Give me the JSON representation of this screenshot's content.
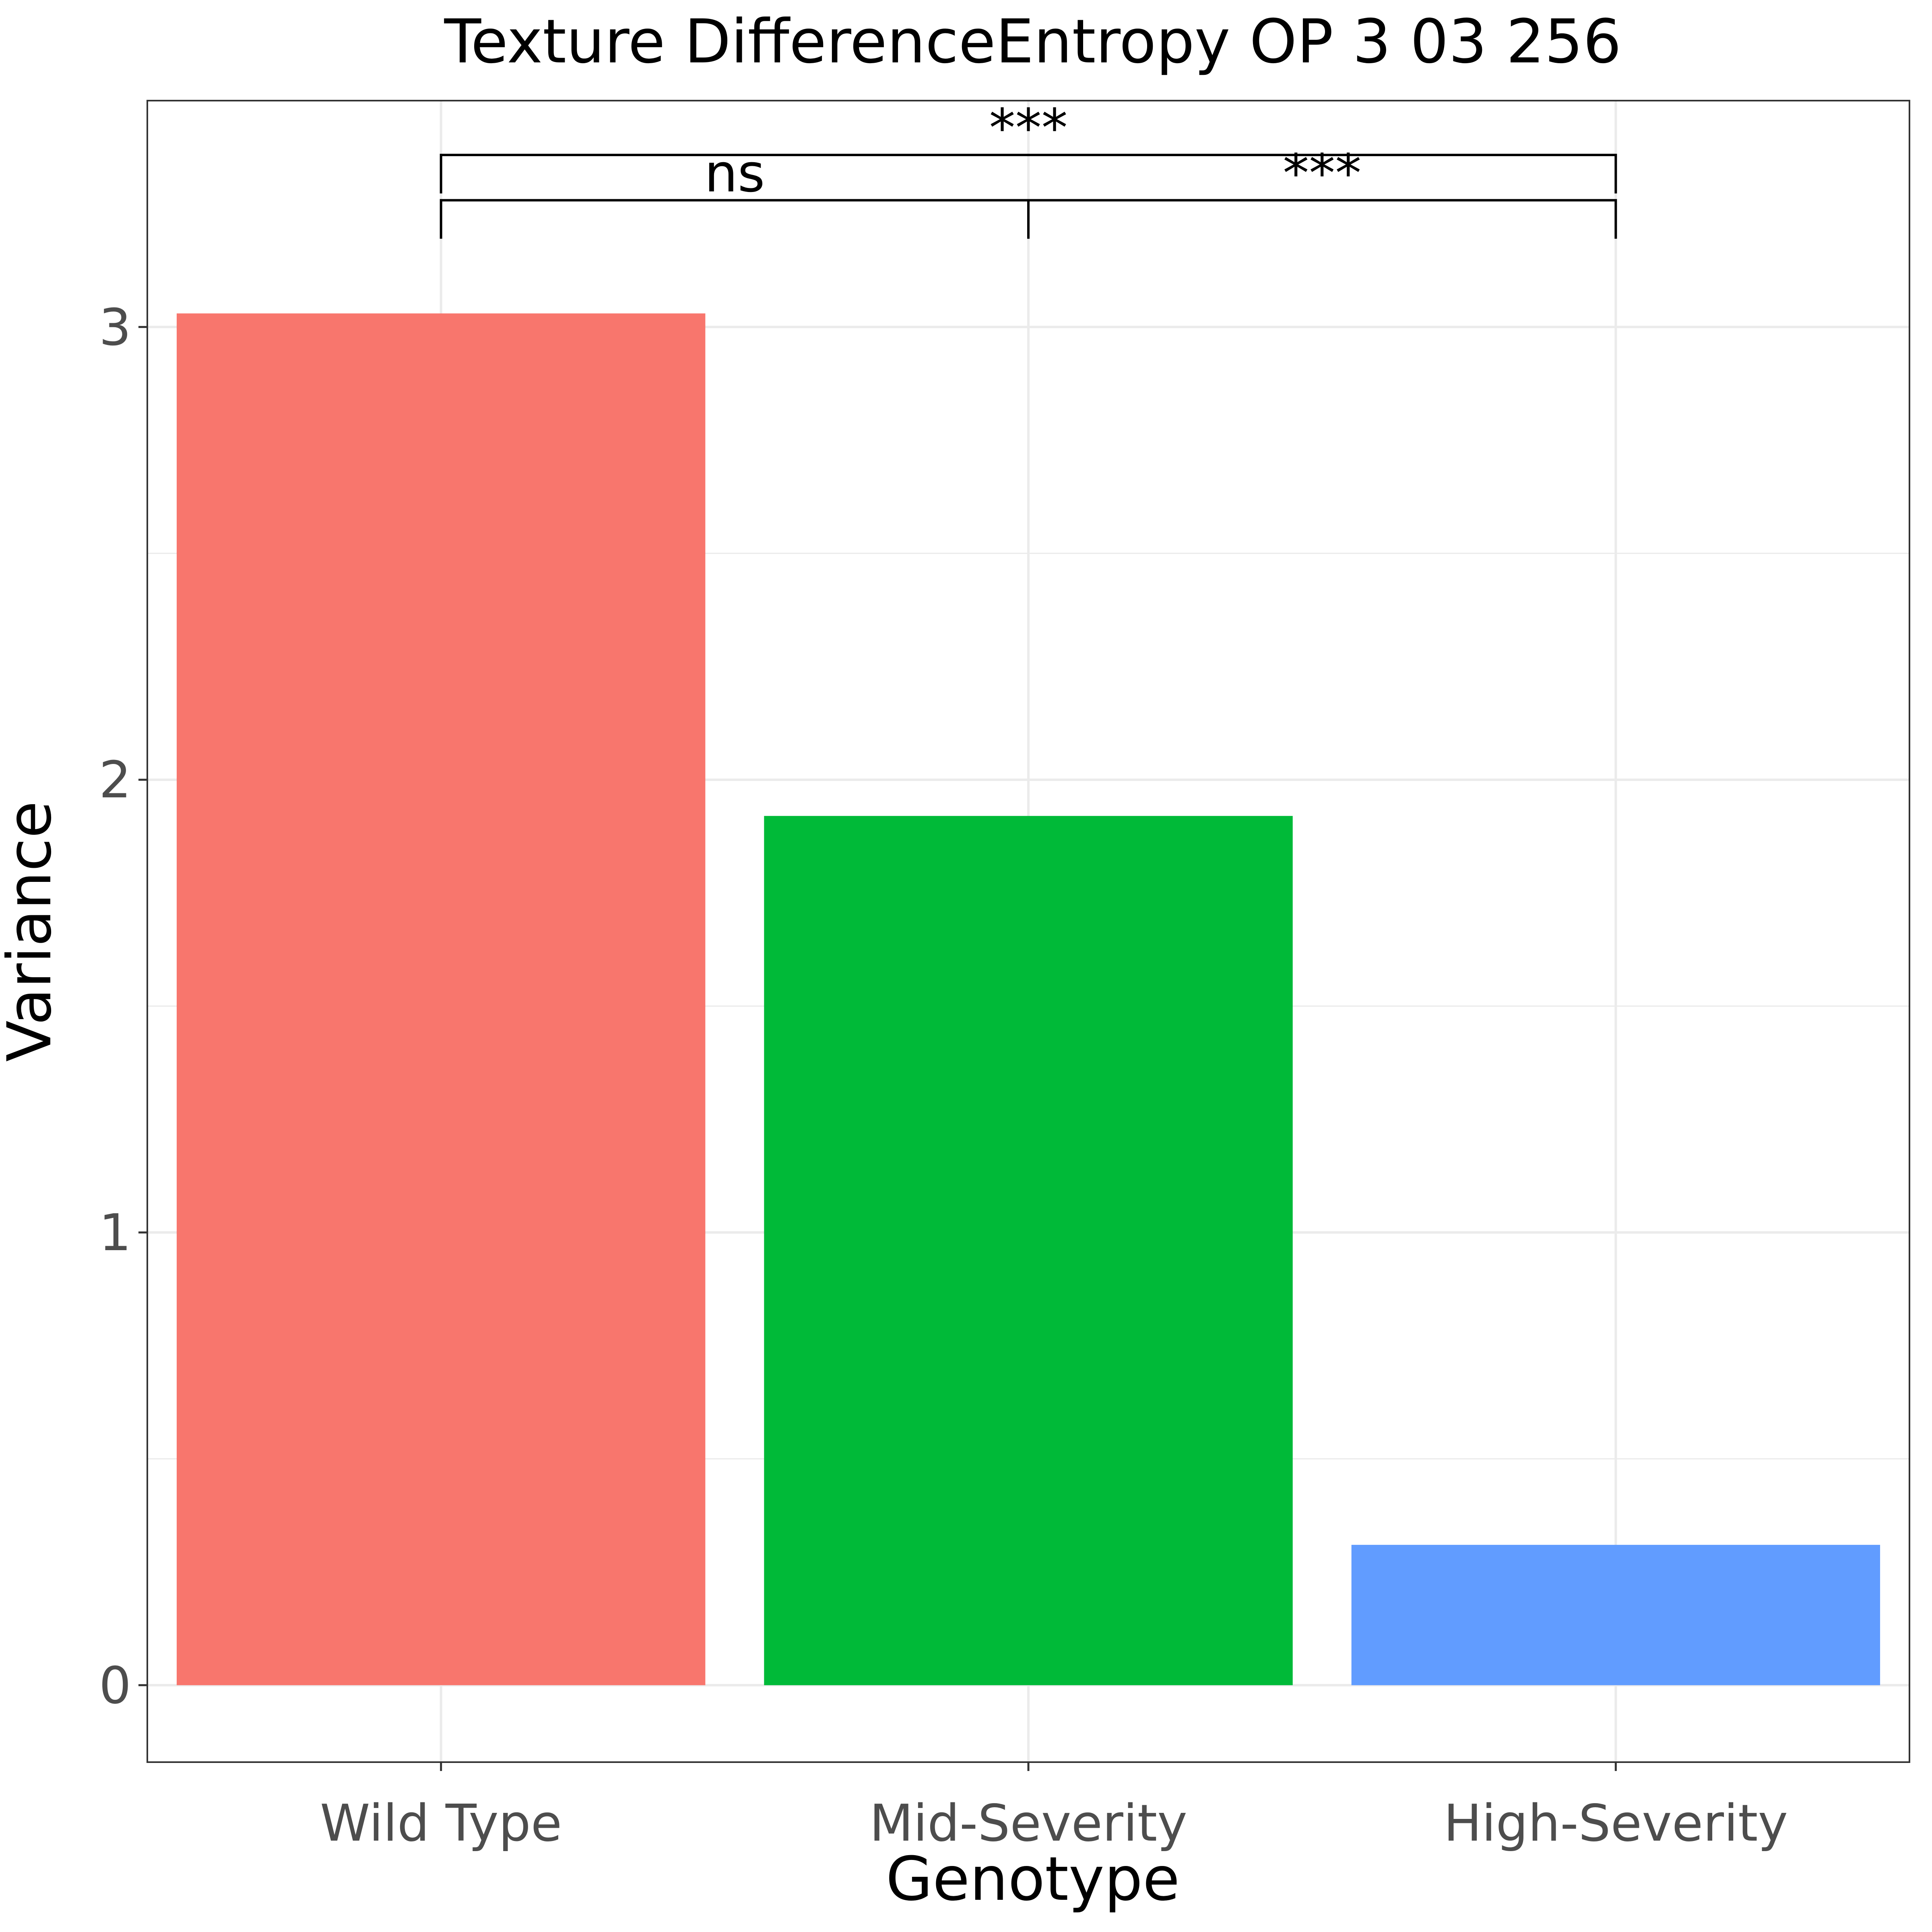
{
  "chart_data": {
    "type": "bar",
    "title": "Texture DifferenceEntropy OP 3 03 256",
    "xlabel": "Genotype",
    "ylabel": "Variance",
    "categories": [
      "Wild Type",
      "Mid-Severity",
      "High-Severity"
    ],
    "values": [
      3.03,
      1.92,
      0.31
    ],
    "colors": [
      "#F8766D",
      "#00BA38",
      "#619CFF"
    ],
    "ylim": [
      -0.17,
      3.5
    ],
    "yticks": [
      0,
      1,
      2,
      3
    ],
    "grid": true,
    "legend": "none",
    "comparisons": [
      {
        "from": "Wild Type",
        "to": "Mid-Severity",
        "label": "ns",
        "bracket_y": 3.28
      },
      {
        "from": "Mid-Severity",
        "to": "High-Severity",
        "label": "***",
        "bracket_y": 3.28
      },
      {
        "from": "Wild Type",
        "to": "High-Severity",
        "label": "***",
        "bracket_y": 3.38
      }
    ]
  }
}
